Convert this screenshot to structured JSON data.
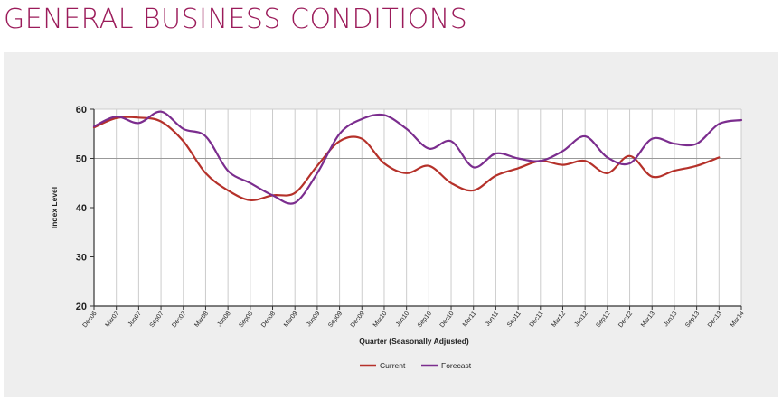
{
  "page": {
    "title": "GENERAL BUSINESS CONDITIONS"
  },
  "colors": {
    "title": "#9b1b5a",
    "current": "#b5312a",
    "forecast": "#7b2d8e",
    "panel": "#eeeeee",
    "grid": "#cccccc"
  },
  "chart_data": {
    "type": "line",
    "title": "",
    "xlabel": "Quarter (Seasonally Adjusted)",
    "ylabel": "Index Level",
    "ylim": [
      20,
      60
    ],
    "yticks": [
      20,
      30,
      40,
      50,
      60
    ],
    "reference_line": 50,
    "grid": true,
    "legend_position": "bottom-center",
    "categories": [
      "Dec06",
      "Mar07",
      "Jun07",
      "Sep07",
      "Dec07",
      "Mar08",
      "Jun08",
      "Sep08",
      "Dec08",
      "Mar09",
      "Jun09",
      "Sep09",
      "Dec09",
      "Mar10",
      "Jun10",
      "Sep10",
      "Dec10",
      "Mar11",
      "Jun11",
      "Sep11",
      "Dec11",
      "Mar12",
      "Jun12",
      "Sep12",
      "Dec12",
      "Mar13",
      "Jun13",
      "Sep13",
      "Dec13",
      "Mar14"
    ],
    "series": [
      {
        "name": "Current",
        "color": "#b5312a",
        "values": [
          56.3,
          58.2,
          58.3,
          57.5,
          53.5,
          47.0,
          43.5,
          41.5,
          42.5,
          43.0,
          48.5,
          53.5,
          54.0,
          49.0,
          47.0,
          48.5,
          45.0,
          43.5,
          46.5,
          48.0,
          49.5,
          48.7,
          49.5,
          47.0,
          50.5,
          46.3,
          47.5,
          48.5,
          50.2,
          null
        ]
      },
      {
        "name": "Forecast",
        "color": "#7b2d8e",
        "values": [
          56.5,
          58.5,
          57.2,
          59.5,
          56.0,
          54.5,
          47.5,
          45.0,
          42.5,
          41.0,
          47.0,
          55.0,
          58.0,
          58.8,
          56.0,
          52.0,
          53.5,
          48.2,
          51.0,
          50.0,
          49.5,
          51.5,
          54.5,
          50.2,
          49.0,
          54.0,
          53.0,
          53.0,
          57.0,
          57.8
        ]
      }
    ]
  }
}
